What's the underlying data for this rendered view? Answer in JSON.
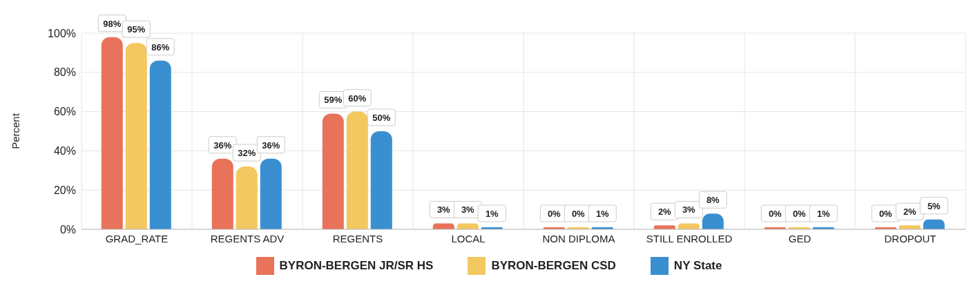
{
  "chart_data": {
    "type": "bar",
    "ylabel": "Percent",
    "categories": [
      "GRAD_RATE",
      "REGENTS ADV",
      "REGENTS",
      "LOCAL",
      "NON DIPLOMA",
      "STILL ENROLLED",
      "GED",
      "DROPOUT"
    ],
    "series": [
      {
        "name": "BYRON-BERGEN JR/SR HS",
        "color": "#e8735a",
        "values": [
          98,
          36,
          59,
          3,
          0,
          2,
          0,
          0
        ],
        "value_labels": [
          "98%",
          "36%",
          "59%",
          "3%",
          "0%",
          "2%",
          "0%",
          "0%"
        ]
      },
      {
        "name": "BYRON-BERGEN CSD",
        "color": "#f4c860",
        "values": [
          95,
          32,
          60,
          3,
          0,
          3,
          0,
          2
        ],
        "value_labels": [
          "95%",
          "32%",
          "60%",
          "3%",
          "0%",
          "3%",
          "0%",
          "2%"
        ]
      },
      {
        "name": "NY State",
        "color": "#3a8fd0",
        "values": [
          86,
          36,
          50,
          1,
          1,
          8,
          1,
          5
        ],
        "value_labels": [
          "86%",
          "36%",
          "50%",
          "1%",
          "1%",
          "8%",
          "1%",
          "5%"
        ]
      }
    ],
    "ylim": [
      0,
      100
    ],
    "yticks": [
      {
        "value": 0,
        "label": "0%"
      },
      {
        "value": 20,
        "label": "20%"
      },
      {
        "value": 40,
        "label": "40%"
      },
      {
        "value": 60,
        "label": "60%"
      },
      {
        "value": 80,
        "label": "80%"
      },
      {
        "value": 100,
        "label": "100%"
      }
    ],
    "grid": true,
    "legend": "bottom"
  }
}
